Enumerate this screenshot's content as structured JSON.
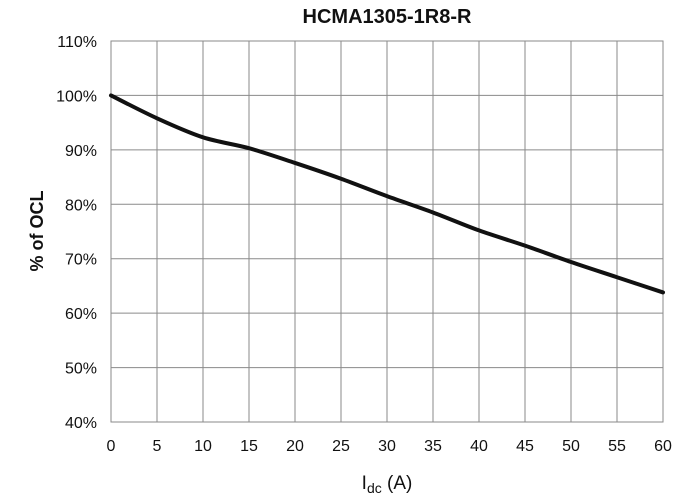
{
  "chart_data": {
    "type": "line",
    "title": "HCMA1305-1R8-R",
    "ylabel": "% of OCL",
    "xlabel": {
      "main": "I",
      "sub": "dc",
      "unit": " (A)"
    },
    "xlim": [
      0,
      60
    ],
    "ylim": [
      40,
      110
    ],
    "x_ticks": [
      "0",
      "5",
      "10",
      "15",
      "20",
      "25",
      "30",
      "35",
      "40",
      "45",
      "50",
      "55",
      "60"
    ],
    "y_ticks": [
      "40%",
      "50%",
      "60%",
      "70%",
      "80%",
      "90%",
      "100%",
      "110%"
    ],
    "grid": true,
    "series": [
      {
        "x": [
          0,
          5,
          10,
          15,
          20,
          25,
          30,
          35,
          40,
          45,
          50,
          55,
          60
        ],
        "y": [
          100,
          95.8,
          92.3,
          90.3,
          87.6,
          84.7,
          81.5,
          78.5,
          75.2,
          72.4,
          69.4,
          66.6,
          63.8
        ]
      }
    ]
  }
}
